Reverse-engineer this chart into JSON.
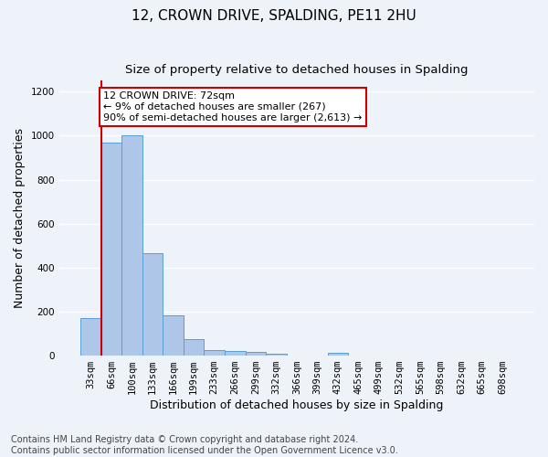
{
  "title": "12, CROWN DRIVE, SPALDING, PE11 2HU",
  "subtitle": "Size of property relative to detached houses in Spalding",
  "xlabel": "Distribution of detached houses by size in Spalding",
  "ylabel": "Number of detached properties",
  "categories": [
    "33sqm",
    "66sqm",
    "100sqm",
    "133sqm",
    "166sqm",
    "199sqm",
    "233sqm",
    "266sqm",
    "299sqm",
    "332sqm",
    "366sqm",
    "399sqm",
    "432sqm",
    "465sqm",
    "499sqm",
    "532sqm",
    "565sqm",
    "598sqm",
    "632sqm",
    "665sqm",
    "698sqm"
  ],
  "values": [
    170,
    970,
    1000,
    465,
    185,
    75,
    27,
    22,
    18,
    10,
    0,
    0,
    14,
    0,
    0,
    0,
    0,
    0,
    0,
    0,
    0
  ],
  "bar_color": "#aec6e8",
  "bar_edge_color": "#5a9fd4",
  "vline_x": 0.5,
  "vline_color": "#cc0000",
  "annotation_text": "12 CROWN DRIVE: 72sqm\n← 9% of detached houses are smaller (267)\n90% of semi-detached houses are larger (2,613) →",
  "annotation_box_color": "#ffffff",
  "annotation_box_edge": "#cc0000",
  "ylim": [
    0,
    1250
  ],
  "yticks": [
    0,
    200,
    400,
    600,
    800,
    1000,
    1200
  ],
  "background_color": "#eef2f9",
  "grid_color": "#ffffff",
  "footer": "Contains HM Land Registry data © Crown copyright and database right 2024.\nContains public sector information licensed under the Open Government Licence v3.0.",
  "title_fontsize": 11,
  "subtitle_fontsize": 9.5,
  "xlabel_fontsize": 9,
  "ylabel_fontsize": 9,
  "footer_fontsize": 7,
  "tick_fontsize": 7.5,
  "annotation_fontsize": 8
}
